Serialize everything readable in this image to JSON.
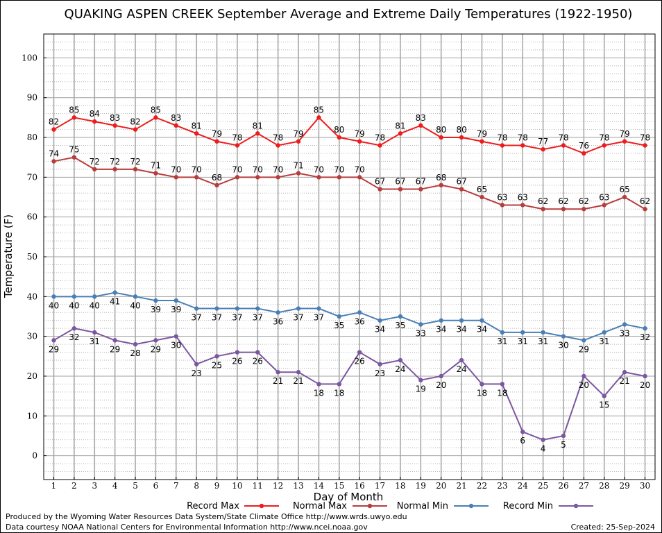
{
  "chart_data": {
    "type": "line",
    "title": "QUAKING ASPEN CREEK September Average and Extreme Daily Temperatures (1922-1950)",
    "xlabel": "Day of Month",
    "ylabel": "Temperature (F)",
    "ylim": [
      -6,
      106
    ],
    "yticks": [
      0,
      10,
      20,
      30,
      40,
      50,
      60,
      70,
      80,
      90,
      100
    ],
    "x": [
      1,
      2,
      3,
      4,
      5,
      6,
      7,
      8,
      9,
      10,
      11,
      12,
      13,
      14,
      15,
      16,
      17,
      18,
      19,
      20,
      21,
      22,
      23,
      24,
      25,
      26,
      27,
      28,
      29,
      30
    ],
    "grid": true,
    "legend_position": "bottom",
    "series": [
      {
        "name": "Record Max",
        "color": "#ee1c1c",
        "values": [
          82,
          85,
          84,
          83,
          82,
          85,
          83,
          81,
          79,
          78,
          81,
          78,
          79,
          85,
          80,
          79,
          78,
          81,
          83,
          80,
          80,
          79,
          78,
          78,
          77,
          78,
          76,
          78,
          79,
          78
        ]
      },
      {
        "name": "Normal Max",
        "color": "#b83c3c",
        "values": [
          74,
          75,
          72,
          72,
          72,
          71,
          70,
          70,
          68,
          70,
          70,
          70,
          71,
          70,
          70,
          70,
          67,
          67,
          67,
          68,
          67,
          65,
          63,
          63,
          62,
          62,
          62,
          63,
          65,
          62
        ]
      },
      {
        "name": "Normal Min",
        "color": "#4a7fb5",
        "values": [
          40,
          40,
          40,
          41,
          40,
          39,
          39,
          37,
          37,
          37,
          37,
          36,
          37,
          37,
          35,
          36,
          34,
          35,
          33,
          34,
          34,
          34,
          31,
          31,
          31,
          30,
          29,
          31,
          33,
          32
        ]
      },
      {
        "name": "Record Min",
        "color": "#7b57a0",
        "values": [
          29,
          32,
          31,
          29,
          28,
          29,
          30,
          23,
          25,
          26,
          26,
          21,
          21,
          18,
          18,
          26,
          23,
          24,
          19,
          20,
          24,
          18,
          18,
          6,
          4,
          5,
          20,
          15,
          21,
          20
        ]
      }
    ]
  },
  "footer": {
    "produced_by": "Produced by the Wyoming Water Resources Data System/State Climate Office http://www.wrds.uwyo.edu",
    "data_courtesy": "Data courtesy NOAA National Centers for Environmental Information http://www.ncei.noaa.gov",
    "created": "Created:  25-Sep-2024"
  }
}
